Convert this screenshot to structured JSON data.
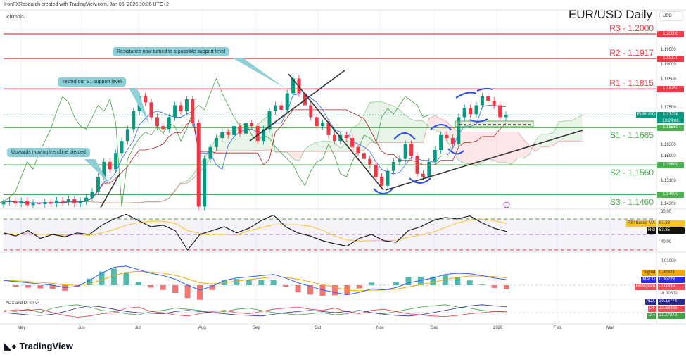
{
  "header": {
    "credit": "IronFXResearch created with TradingView.com, Jan 06, 2026 10:35 UTC+2",
    "indicator": "Ichimoku",
    "title": "EUR/USD Daily",
    "currency": "USD"
  },
  "levels": [
    {
      "label": "R3 - 1.2000",
      "price": 1.2,
      "tag": "1.20000",
      "color": "#f23645"
    },
    {
      "label": "R2 - 1.1917",
      "price": 1.1917,
      "tag": "1.19170",
      "color": "#f23645"
    },
    {
      "label": "R1 - 1.1815",
      "price": 1.1815,
      "tag": "1.18150",
      "color": "#f23645"
    },
    {
      "label": "S1 - 1.1685",
      "price": 1.1685,
      "tag": "1.16850",
      "color": "#4caf50"
    },
    {
      "label": "S2 - 1.1560",
      "price": 1.156,
      "tag": "1.15600",
      "color": "#4caf50"
    },
    {
      "label": "S3 - 1.1460",
      "price": 1.146,
      "tag": "1.14600",
      "color": "#4caf50"
    }
  ],
  "price_axis": [
    "1.19500",
    "1.19000",
    "1.18500",
    "1.17500",
    "1.16300",
    "1.15900",
    "1.15100",
    "1.14300"
  ],
  "last": {
    "symbol": "EURUSD",
    "price": "1.17276",
    "countdown": "13:24:08"
  },
  "annotations": [
    "Resistance now turned to a possible support level",
    "Tested our S1 support level",
    "Upwards moving trendline  pierced"
  ],
  "chart_data": {
    "type": "candlestick",
    "title": "EUR/USD Daily",
    "x_ticks": [
      "May",
      "Jun",
      "Jul",
      "Aug",
      "Sep",
      "Oct",
      "Nov",
      "Dec",
      "2026",
      "Feb",
      "Mar"
    ],
    "ylim": [
      1.1405,
      1.2035
    ],
    "closes": [
      1.1435,
      1.144,
      1.143,
      1.1438,
      1.1425,
      1.1432,
      1.1428,
      1.1435,
      1.143,
      1.144,
      1.1436,
      1.1445,
      1.143,
      1.1438,
      1.145,
      1.147,
      1.152,
      1.157,
      1.1545,
      1.16,
      1.164,
      1.168,
      1.174,
      1.179,
      1.177,
      1.172,
      1.169,
      1.168,
      1.172,
      1.176,
      1.174,
      1.178,
      1.17,
      1.142,
      1.158,
      1.162,
      1.165,
      1.167,
      1.166,
      1.169,
      1.1665,
      1.17,
      1.169,
      1.164,
      1.168,
      1.174,
      1.176,
      1.1745,
      1.18,
      1.185,
      1.18,
      1.176,
      1.172,
      1.169,
      1.17,
      1.166,
      1.164,
      1.166,
      1.165,
      1.162,
      1.16,
      1.158,
      1.156,
      1.152,
      1.149,
      1.154,
      1.157,
      1.158,
      1.163,
      1.159,
      1.153,
      1.152,
      1.157,
      1.161,
      1.166,
      1.165,
      1.163,
      1.172,
      1.175,
      1.173,
      1.176,
      1.179,
      1.1775,
      1.176,
      1.172,
      1.17276
    ],
    "colors": {
      "up": "#089981",
      "down": "#f23645",
      "tenkan": "#2962ff",
      "kijun": "#b71c1c",
      "chikou": "#43a047"
    }
  },
  "rsi": {
    "label": "RSI",
    "ma_label": "RSI-based MA",
    "ma_value": "61.39",
    "value": "53.85",
    "axis": [
      "80.00",
      "40.00"
    ],
    "levels": [
      70,
      50,
      30
    ],
    "values": [
      52,
      48,
      55,
      45,
      50,
      47,
      52,
      50,
      62,
      70,
      76,
      68,
      60,
      62,
      55,
      30,
      50,
      55,
      60,
      52,
      58,
      68,
      75,
      60,
      52,
      48,
      42,
      38,
      35,
      45,
      50,
      42,
      40,
      55,
      60,
      68,
      72,
      70,
      74,
      65,
      58,
      53.85
    ]
  },
  "macd": {
    "signal_label": "Signal",
    "signal_value": "0.00323",
    "macd_label": "MACD",
    "macd_value": "0.00229",
    "hist_label": "Histogram",
    "hist_value": "-0.00094",
    "axis": [
      "0.01000",
      "-0.00500"
    ],
    "values": [
      0.002,
      0.0015,
      0.001,
      0.0005,
      0.0,
      -0.001,
      -0.0005,
      0.002,
      0.005,
      0.0075,
      0.008,
      0.0065,
      0.005,
      0.004,
      0.0025,
      0.0,
      -0.002,
      -0.0005,
      0.002,
      0.003,
      0.0035,
      0.004,
      0.0045,
      0.003,
      0.001,
      -0.0005,
      -0.002,
      -0.003,
      -0.004,
      -0.003,
      -0.0015,
      -0.002,
      -0.001,
      0.001,
      0.002,
      0.003,
      0.0045,
      0.005,
      0.0048,
      0.004,
      0.003,
      0.00229
    ]
  },
  "adx": {
    "title": "ADX and DI for v4",
    "adx_label": "ADX",
    "adx_value": "30.15774",
    "dim_label": "DI-",
    "dim_value": "22.68488",
    "dip_label": "DI+",
    "dip_value": "21.27278",
    "adx": [
      20,
      18,
      16,
      15,
      17,
      22,
      28,
      32,
      30,
      26,
      22,
      20,
      19,
      18,
      22,
      24,
      22,
      20,
      18,
      16,
      15,
      14,
      17,
      20,
      22,
      24,
      22,
      20,
      22,
      24,
      20,
      17,
      15,
      14,
      16,
      20,
      24,
      28,
      32,
      34,
      32,
      30.16
    ],
    "dim": [
      22,
      25,
      24,
      26,
      20,
      15,
      12,
      14,
      18,
      20,
      28,
      30,
      22,
      20,
      16,
      14,
      18,
      22,
      24,
      20,
      18,
      22,
      26,
      28,
      30,
      26,
      24,
      28,
      22,
      18,
      24,
      26,
      22,
      18,
      16,
      14,
      13,
      15,
      18,
      20,
      22,
      22.68
    ],
    "dip": [
      24,
      22,
      26,
      20,
      28,
      32,
      34,
      30,
      24,
      22,
      18,
      16,
      22,
      24,
      28,
      26,
      24,
      20,
      22,
      26,
      28,
      24,
      20,
      18,
      16,
      18,
      20,
      16,
      18,
      24,
      20,
      18,
      22,
      26,
      30,
      32,
      34,
      30,
      28,
      24,
      22,
      21.27
    ]
  },
  "footer": {
    "logo": "TradingView"
  }
}
